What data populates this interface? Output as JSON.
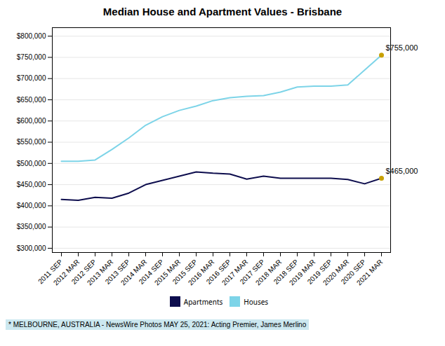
{
  "chart_data": {
    "type": "line",
    "title": "Median House and Apartment Values - Brisbane",
    "categories": [
      "2011 SEP",
      "2012 MAR",
      "2012 SEP",
      "2013 MAR",
      "2013 SEP",
      "2014 MAR",
      "2014 SEP",
      "2015 MAR",
      "2015 SEP",
      "2016 MAR",
      "2016 SEP",
      "2017 MAR",
      "2017 SEP",
      "2018 MAR",
      "2018 SEP",
      "2019 MAR",
      "2019 SEP",
      "2020 MAR",
      "2020 SEP",
      "2021 MAR"
    ],
    "series": [
      {
        "name": "Apartments",
        "color": "#0d0d4d",
        "values": [
          415000,
          413000,
          420000,
          418000,
          430000,
          450000,
          460000,
          470000,
          480000,
          477000,
          475000,
          463000,
          470000,
          465000,
          465000,
          465000,
          465000,
          462000,
          452000,
          465000
        ]
      },
      {
        "name": "Houses",
        "color": "#7dd4e8",
        "values": [
          505000,
          505000,
          508000,
          533000,
          560000,
          590000,
          610000,
          625000,
          635000,
          648000,
          655000,
          658000,
          660000,
          668000,
          680000,
          682000,
          682000,
          685000,
          720000,
          755000
        ]
      }
    ],
    "ylim": [
      290000,
      820000
    ],
    "yticks": [
      {
        "value": 300000,
        "label": "$300,000"
      },
      {
        "value": 350000,
        "label": "$350,000"
      },
      {
        "value": 400000,
        "label": "$400,000"
      },
      {
        "value": 450000,
        "label": "$450,000"
      },
      {
        "value": 500000,
        "label": "$500,000"
      },
      {
        "value": 550000,
        "label": "$550,000"
      },
      {
        "value": 600000,
        "label": "$600,000"
      },
      {
        "value": 650000,
        "label": "$650,000"
      },
      {
        "value": 700000,
        "label": "$700,000"
      },
      {
        "value": 750000,
        "label": "$750,000"
      },
      {
        "value": 800000,
        "label": "$800,000"
      }
    ],
    "annotations": [
      {
        "text": "$755,000",
        "x": "2021 MAR",
        "y": 755000,
        "color": "#c8a000"
      },
      {
        "text": "$465,000",
        "x": "2021 MAR",
        "y": 465000,
        "color": "#c8a000"
      }
    ],
    "caption": "* MELBOURNE, AUSTRALIA - NewsWire Photos MAY 25, 2021: Acting Premier, James Merlino",
    "grid": true,
    "legend": "bottom"
  }
}
